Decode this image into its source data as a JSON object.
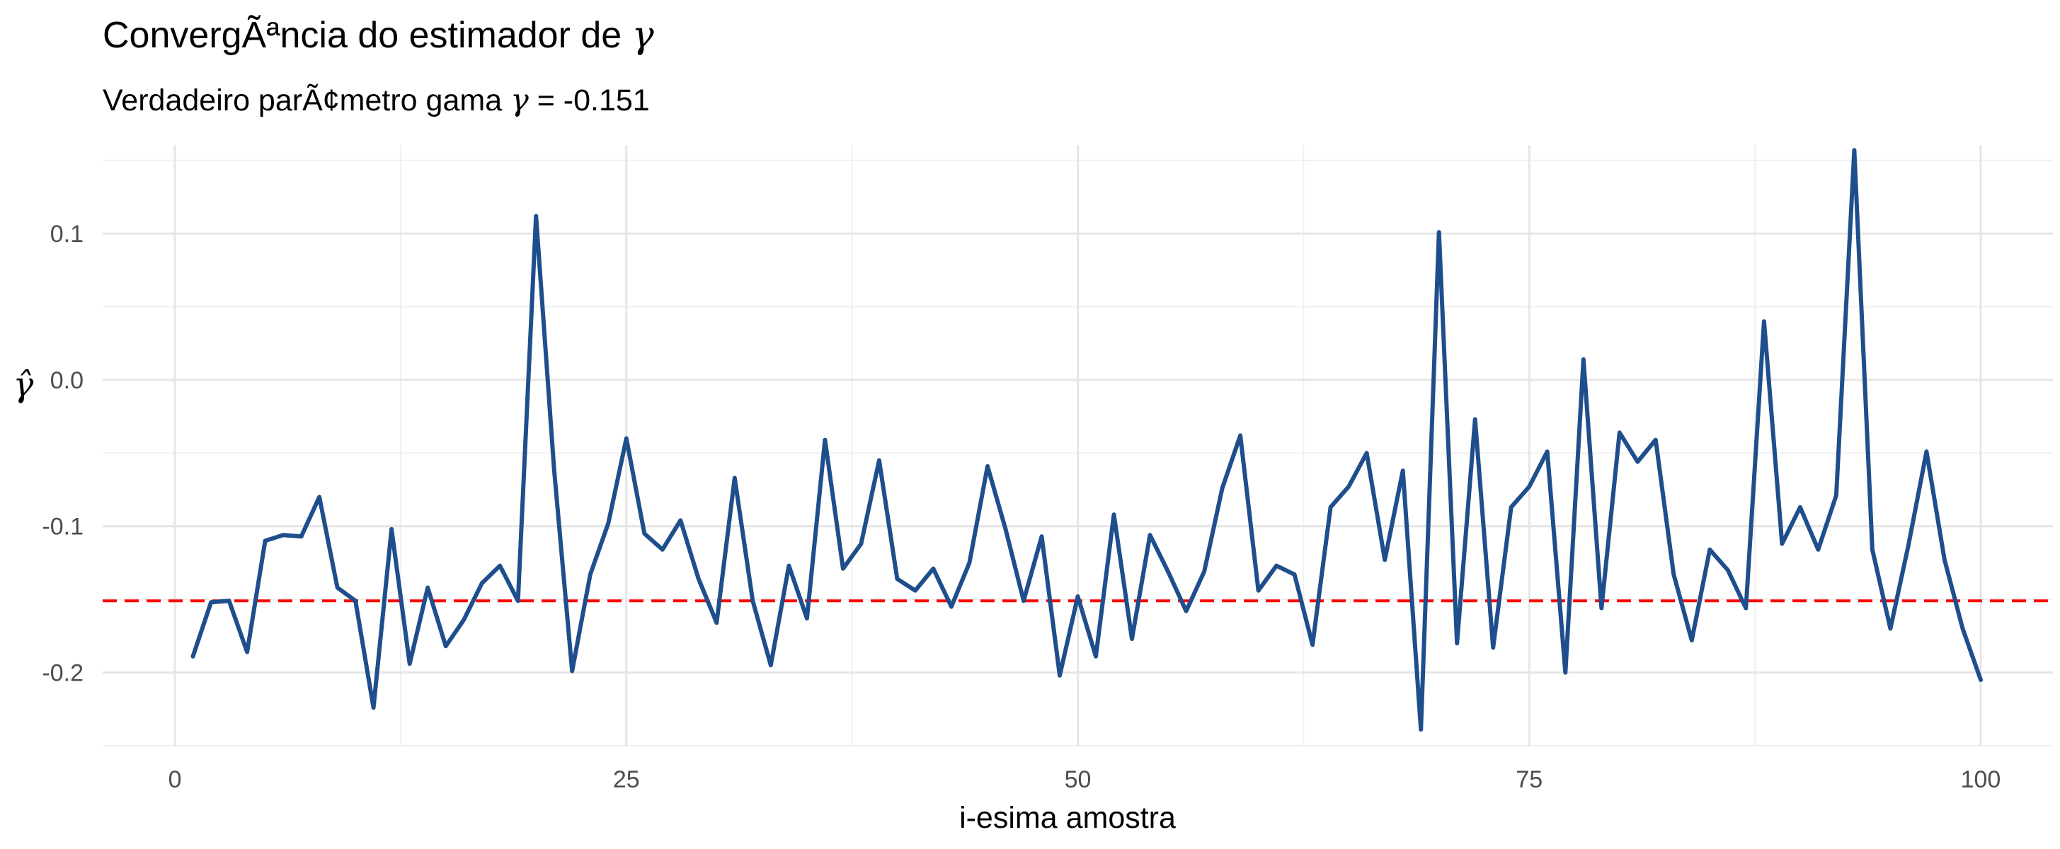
{
  "title_prefix": "ConvergÃªncia do estimador de ",
  "title_symbol": "γ",
  "subtitle_prefix": "Verdadeiro parÃ¢metro gama ",
  "subtitle_symbol": "γ",
  "subtitle_eq": " = ",
  "subtitle_value": "-0.151",
  "chart_data": {
    "type": "line",
    "xlabel": "i-esima amostra",
    "ylabel": "γ̂",
    "xlim": [
      -4,
      104
    ],
    "ylim": [
      -0.2505,
      0.1605
    ],
    "x_ticks": [
      0,
      25,
      50,
      75,
      100
    ],
    "x_tick_labels": [
      "0",
      "25",
      "50",
      "75",
      "100"
    ],
    "y_ticks": [
      -0.2,
      -0.1,
      0.0,
      0.1
    ],
    "y_tick_labels": [
      "-0.2",
      "-0.1",
      "0.0",
      "0.1"
    ],
    "grid": true,
    "series": [
      {
        "color": "#1f4e8c",
        "x": [
          1,
          2,
          3,
          4,
          5,
          6,
          7,
          8,
          9,
          10,
          11,
          12,
          13,
          14,
          15,
          16,
          17,
          18,
          19,
          20,
          21,
          22,
          23,
          24,
          25,
          26,
          27,
          28,
          29,
          30,
          31,
          32,
          33,
          34,
          35,
          36,
          37,
          38,
          39,
          40,
          41,
          42,
          43,
          44,
          45,
          46,
          47,
          48,
          49,
          50,
          51,
          52,
          53,
          54,
          55,
          56,
          57,
          58,
          59,
          60,
          61,
          62,
          63,
          64,
          65,
          66,
          67,
          68,
          69,
          70,
          71,
          72,
          73,
          74,
          75,
          76,
          77,
          78,
          79,
          80,
          81,
          82,
          83,
          84,
          85,
          86,
          87,
          88,
          89,
          90,
          91,
          92,
          93,
          94,
          95,
          96,
          97,
          98,
          99,
          100
        ],
        "y": [
          -0.189,
          -0.152,
          -0.151,
          -0.186,
          -0.11,
          -0.106,
          -0.107,
          -0.08,
          -0.142,
          -0.151,
          -0.224,
          -0.102,
          -0.194,
          -0.142,
          -0.182,
          -0.164,
          -0.139,
          -0.127,
          -0.151,
          0.112,
          -0.061,
          -0.199,
          -0.133,
          -0.098,
          -0.04,
          -0.105,
          -0.116,
          -0.096,
          -0.136,
          -0.166,
          -0.067,
          -0.151,
          -0.195,
          -0.127,
          -0.163,
          -0.041,
          -0.129,
          -0.112,
          -0.055,
          -0.136,
          -0.144,
          -0.129,
          -0.155,
          -0.125,
          -0.059,
          -0.102,
          -0.151,
          -0.107,
          -0.202,
          -0.148,
          -0.189,
          -0.092,
          -0.177,
          -0.106,
          -0.131,
          -0.158,
          -0.131,
          -0.074,
          -0.038,
          -0.144,
          -0.127,
          -0.133,
          -0.181,
          -0.087,
          -0.073,
          -0.05,
          -0.123,
          -0.062,
          -0.239,
          0.101,
          -0.18,
          -0.027,
          -0.183,
          -0.087,
          -0.073,
          -0.049,
          -0.2,
          0.014,
          -0.156,
          -0.036,
          -0.056,
          -0.041,
          -0.133,
          -0.178,
          -0.116,
          -0.13,
          -0.156,
          0.04,
          -0.112,
          -0.087,
          -0.116,
          -0.079,
          0.157,
          -0.116,
          -0.17,
          -0.113,
          -0.049,
          -0.123,
          -0.17,
          -0.205
        ]
      },
      {
        "kind": "hline",
        "y": -0.151,
        "color": "#ff0000",
        "dashed": true
      }
    ]
  }
}
